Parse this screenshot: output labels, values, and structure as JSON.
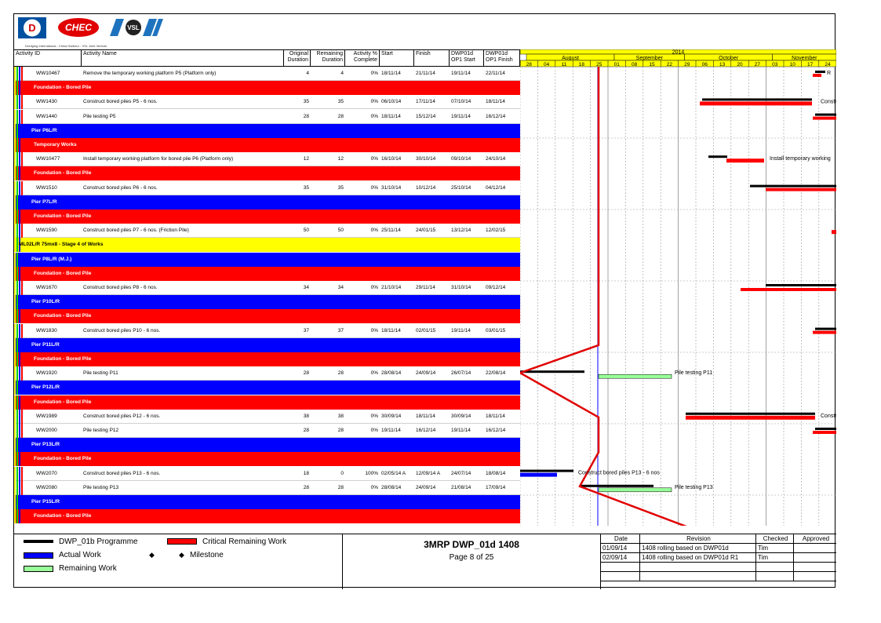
{
  "logos": {
    "logo1_text": "D",
    "logo2_text": "CHEC",
    "logo3_text": "VSL",
    "subtitle": "Dredging International - China Harbour - VSL Joint Venture"
  },
  "columns": {
    "id": "Activity ID",
    "name": "Activity Name",
    "orig": "Original Duration",
    "rem": "Remaining Duration",
    "pct": "Activity % Complete",
    "start": "Start",
    "finish": "Finish",
    "dwp_start": "DWP01d OP1 Start",
    "dwp_finish": "DWP01d OP1 Finish"
  },
  "rows": [
    {
      "type": "act",
      "id": "WW10467",
      "name": "Remove the temporary working platform P5 (Platform only)",
      "orig": "4",
      "rem": "4",
      "pct": "0%",
      "start": "18/11/14",
      "finish": "21/11/14",
      "ds": "19/11/14",
      "df": "22/11/14"
    },
    {
      "type": "red",
      "name": "Foundation - Bored Pile"
    },
    {
      "type": "act",
      "id": "WW1430",
      "name": "Construct bored piles P5 - 6 nos.",
      "orig": "35",
      "rem": "35",
      "pct": "0%",
      "start": "06/10/14",
      "finish": "17/11/14",
      "ds": "07/10/14",
      "df": "18/11/14"
    },
    {
      "type": "act",
      "id": "WW1440",
      "name": "Pile testing P5",
      "orig": "28",
      "rem": "28",
      "pct": "0%",
      "start": "18/11/14",
      "finish": "15/12/14",
      "ds": "19/11/14",
      "df": "16/12/14"
    },
    {
      "type": "blue",
      "name": "Pier P6L/R"
    },
    {
      "type": "red",
      "name": "Temporary Works"
    },
    {
      "type": "act",
      "id": "WW10477",
      "name": "Install temporary working platform for bored pile P6 (Platform only)",
      "orig": "12",
      "rem": "12",
      "pct": "0%",
      "start": "16/10/14",
      "finish": "30/10/14",
      "ds": "09/10/14",
      "df": "24/10/14"
    },
    {
      "type": "red",
      "name": "Foundation - Bored Pile"
    },
    {
      "type": "act",
      "id": "WW1510",
      "name": "Construct bored piles P6 - 6 nos.",
      "orig": "35",
      "rem": "35",
      "pct": "0%",
      "start": "31/10/14",
      "finish": "10/12/14",
      "ds": "25/10/14",
      "df": "04/12/14"
    },
    {
      "type": "blue",
      "name": "Pier P7L/R"
    },
    {
      "type": "red",
      "name": "Foundation - Bored Pile"
    },
    {
      "type": "act",
      "id": "WW1590",
      "name": "Construct bored piles P7 - 6 nos. (Friction Pile)",
      "orig": "50",
      "rem": "50",
      "pct": "0%",
      "start": "25/11/14",
      "finish": "24/01/15",
      "ds": "13/12/14",
      "df": "12/02/15"
    },
    {
      "type": "yellow",
      "name": "ML02L/R 75mx8 - Stage 4 of Works"
    },
    {
      "type": "blue",
      "name": "Pier P8L/R (M.J.)"
    },
    {
      "type": "red",
      "name": "Foundation - Bored Pile"
    },
    {
      "type": "act",
      "id": "WW1670",
      "name": "Construct bored piles P8 - 6 nos.",
      "orig": "34",
      "rem": "34",
      "pct": "0%",
      "start": "21/10/14",
      "finish": "29/11/14",
      "ds": "31/10/14",
      "df": "09/12/14"
    },
    {
      "type": "blue",
      "name": "Pier P10L/R"
    },
    {
      "type": "red",
      "name": "Foundation - Bored Pile"
    },
    {
      "type": "act",
      "id": "WW1830",
      "name": "Construct bored piles P10 - 6 nos.",
      "orig": "37",
      "rem": "37",
      "pct": "0%",
      "start": "18/11/14",
      "finish": "02/01/15",
      "ds": "19/11/14",
      "df": "03/01/15"
    },
    {
      "type": "blue",
      "name": "Pier P11L/R"
    },
    {
      "type": "red",
      "name": "Foundation - Bored Pile"
    },
    {
      "type": "act",
      "id": "WW1920",
      "name": "Pile testing P11",
      "orig": "28",
      "rem": "28",
      "pct": "0%",
      "start": "28/08/14",
      "finish": "24/09/14",
      "ds": "26/07/14",
      "df": "22/08/14"
    },
    {
      "type": "blue",
      "name": "Pier P12L/R"
    },
    {
      "type": "red",
      "name": "Foundation - Bored Pile"
    },
    {
      "type": "act",
      "id": "WW1989",
      "name": "Construct bored piles P12 - 6 nos.",
      "orig": "38",
      "rem": "38",
      "pct": "0%",
      "start": "30/09/14",
      "finish": "18/11/14",
      "ds": "30/09/14",
      "df": "18/11/14"
    },
    {
      "type": "act",
      "id": "WW2000",
      "name": "Pile testing P12",
      "orig": "28",
      "rem": "28",
      "pct": "0%",
      "start": "19/11/14",
      "finish": "16/12/14",
      "ds": "19/11/14",
      "df": "16/12/14"
    },
    {
      "type": "blue",
      "name": "Pier P13L/R"
    },
    {
      "type": "red",
      "name": "Foundation - Bored Pile"
    },
    {
      "type": "act",
      "id": "WW2070",
      "name": "Construct bored piles P13 - 6 nos.",
      "orig": "18",
      "rem": "0",
      "pct": "100%",
      "start": "02/05/14 A",
      "finish": "12/09/14 A",
      "ds": "24/07/14",
      "df": "18/08/14"
    },
    {
      "type": "act",
      "id": "WW2080",
      "name": "Pile testing P13",
      "orig": "28",
      "rem": "28",
      "pct": "0%",
      "start": "28/08/14",
      "finish": "24/09/14",
      "ds": "21/08/14",
      "df": "17/09/14"
    },
    {
      "type": "blue",
      "name": "Pier P15L/R"
    },
    {
      "type": "red",
      "name": "Foundation - Bored Pile"
    }
  ],
  "gantt": {
    "year": "2014",
    "months": [
      "August",
      "September",
      "October",
      "November"
    ],
    "weeks": [
      "28",
      "04",
      "11",
      "18",
      "25",
      "01",
      "08",
      "15",
      "22",
      "29",
      "06",
      "13",
      "20",
      "27",
      "03",
      "10",
      "17",
      "24"
    ],
    "labels": [
      "R",
      "Constr",
      "Install temporary working",
      "Pile testing P11",
      "Constr",
      "Construct bored piles P13 - 6 nos",
      "Pile testing P13"
    ]
  },
  "legend": {
    "dwp": "DWP_01b Programme",
    "critical": "Critical Remaining Work",
    "actual": "Actual Work",
    "milestone": "Milestone",
    "remaining": "Remaining Work",
    "title": "3MRP DWP_01d 1408",
    "page": "Page 8 of 25",
    "rev_head_date": "Date",
    "rev_head_rev": "Revision",
    "rev_head_checked": "Checked",
    "rev_head_approved": "Approved",
    "revisions": [
      {
        "date": "01/09/14",
        "rev": "1408 rolling based on DWP01d",
        "checked": "Tim",
        "approved": ""
      },
      {
        "date": "02/09/14",
        "rev": "1408 rolling based on DWP01d R1",
        "checked": "Tim",
        "approved": ""
      }
    ],
    "colors": {
      "dwp": "#000000",
      "critical": "#ff0000",
      "actual": "#0000ff",
      "remaining": "#99ff99"
    }
  }
}
